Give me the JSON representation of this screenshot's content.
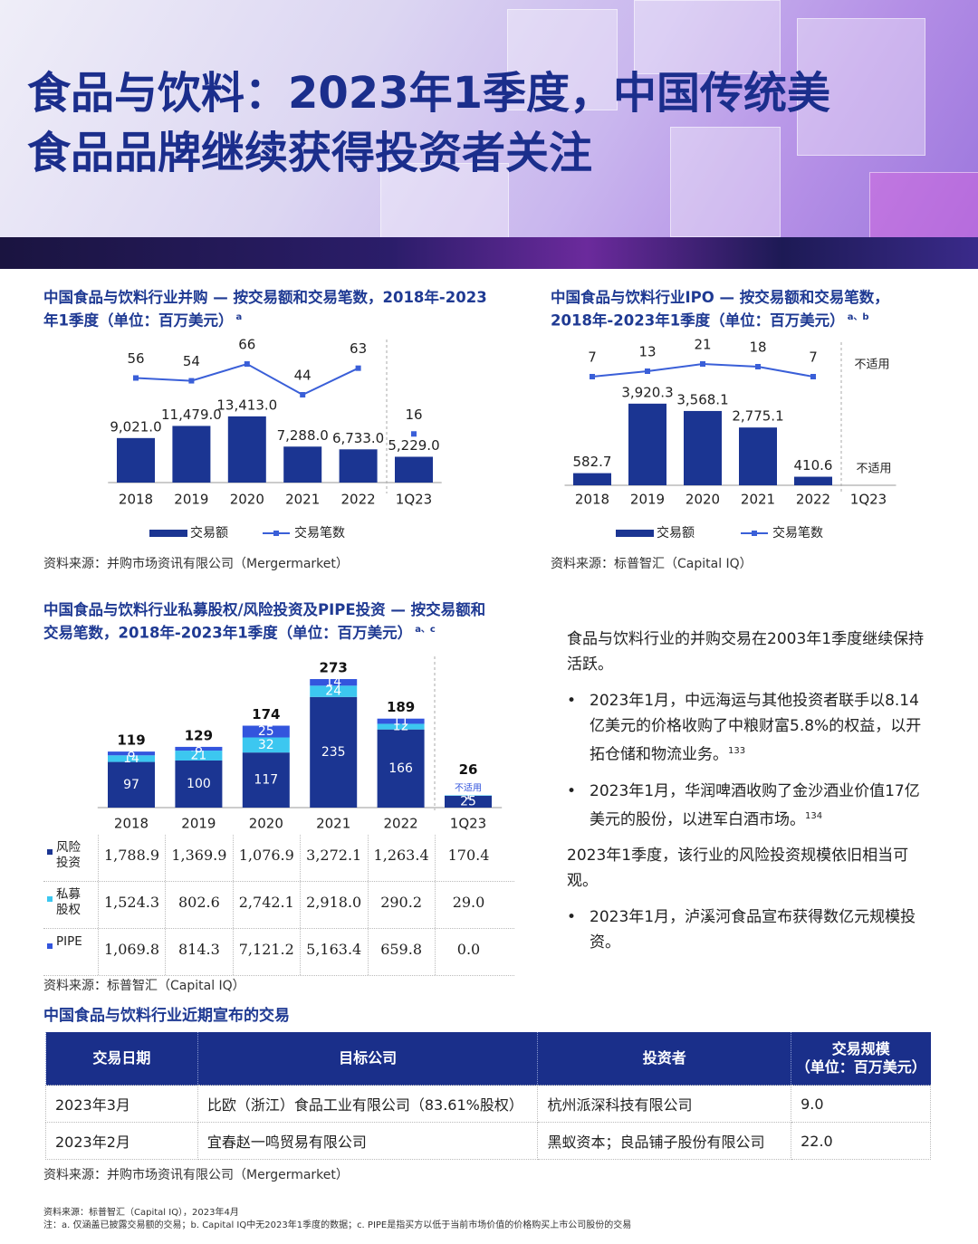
{
  "header": {
    "title_lines": [
      "食品与饮料：2023年1季度，中国传统美",
      "食品品牌继续获得投资者关注"
    ]
  },
  "chart_data": [
    {
      "type": "bar_line",
      "title": "中国食品与饮料行业并购 — 按交易额和交易笔数，2018年-2023年1季度（单位：百万美元）",
      "title_note": "a",
      "categories": [
        "2018",
        "2019",
        "2020",
        "2021",
        "2022",
        "1Q23"
      ],
      "series": [
        {
          "name": "交易额",
          "color": "#1b3592",
          "values": [
            9021.0,
            11479.0,
            13413.0,
            7288.0,
            6733.0,
            5229.0
          ],
          "value_labels": [
            "9,021.0",
            "11,479.0",
            "13,413.0",
            "7,288.0",
            "6,733.0",
            "5,229.0"
          ]
        },
        {
          "name": "交易笔数",
          "color": "#3a5fd8",
          "values": [
            56,
            54,
            66,
            44,
            63,
            16
          ]
        }
      ],
      "source": "资料来源：并购市场资讯有限公司（Mergermarket）"
    },
    {
      "type": "bar_line",
      "title": "中国食品与饮料行业IPO — 按交易额和交易笔数，2018年-2023年1季度（单位：百万美元）",
      "title_note": "a、b",
      "categories": [
        "2018",
        "2019",
        "2020",
        "2021",
        "2022",
        "1Q23"
      ],
      "series": [
        {
          "name": "交易额",
          "color": "#1b3592",
          "values": [
            582.7,
            3920.3,
            3568.1,
            2775.1,
            410.6,
            null
          ],
          "value_labels": [
            "582.7",
            "3,920.3",
            "3,568.1",
            "2,775.1",
            "410.6",
            "不适用"
          ]
        },
        {
          "name": "交易笔数",
          "color": "#3a5fd8",
          "values": [
            7,
            13,
            21,
            18,
            7,
            null
          ],
          "value_labels": [
            "7",
            "13",
            "21",
            "18",
            "7",
            "不适用"
          ]
        }
      ],
      "source": "资料来源：标普智汇（Capital IQ）"
    },
    {
      "type": "stacked_bar",
      "title": "中国食品与饮料行业私募股权/风险投资及PIPE投资 — 按交易额和交易笔数，2018年-2023年1季度（单位：百万美元）",
      "title_note": "a、c",
      "categories": [
        "2018",
        "2019",
        "2020",
        "2021",
        "2022",
        "1Q23"
      ],
      "series": [
        {
          "name": "风险投资",
          "color": "#1b3592",
          "values": [
            97,
            100,
            117,
            235,
            166,
            25
          ]
        },
        {
          "name": "私募股权",
          "color": "#3cc7f0",
          "values": [
            14,
            21,
            32,
            24,
            12,
            1
          ]
        },
        {
          "name": "PIPE",
          "color": "#3355dd",
          "values": [
            8,
            8,
            25,
            14,
            11,
            null
          ],
          "value_labels": [
            "8",
            "8",
            "25",
            "14",
            "11",
            "不适用"
          ]
        }
      ],
      "totals": [
        119,
        129,
        174,
        273,
        189,
        26
      ],
      "table": {
        "rows": [
          [
            "1,788.9",
            "1,369.9",
            "1,076.9",
            "3,272.1",
            "1,263.4",
            "170.4"
          ],
          [
            "1,524.3",
            "802.6",
            "2,742.1",
            "2,918.0",
            "290.2",
            "29.0"
          ],
          [
            "1,069.8",
            "814.3",
            "7,121.2",
            "5,163.4",
            "659.8",
            "0.0"
          ]
        ]
      },
      "source": "资料来源：标普智汇（Capital IQ）"
    }
  ],
  "text": {
    "paragraphs": [
      {
        "text": "食品与饮料行业的并购交易在2003年1季度继续保持活跃。",
        "bullets": [
          {
            "text": "2023年1月，中远海运与其他投资者联手以8.14亿美元的价格收购了中粮财富5.8%的权益，以开拓仓储和物流业务。",
            "ref": "133"
          },
          {
            "text": "2023年1月，华润啤酒收购了金沙酒业价值17亿美元的股份，以进军白酒市场。",
            "ref": "134"
          }
        ]
      },
      {
        "text": "2023年1季度，该行业的风险投资规模依旧相当可观。",
        "bullets": [
          {
            "text": "2023年1月，泸溪河食品宣布获得数亿元规模投资。"
          }
        ]
      }
    ]
  },
  "deals_table": {
    "title": "中国食品与饮料行业近期宣布的交易",
    "header": [
      "交易日期",
      "目标公司",
      "投资者",
      [
        "交易规模",
        "（单位：百万美元）"
      ]
    ],
    "rows": [
      [
        "2023年3月",
        "比欧（浙江）食品工业有限公司（83.61%股权）",
        "杭州派深科技有限公司",
        "9.0"
      ],
      [
        "2023年2月",
        "宜春赵一鸣贸易有限公司",
        "黑蚁资本；良品铺子股份有限公司",
        "22.0"
      ]
    ],
    "source": "资料来源：并购市场资讯有限公司（Mergermarket）"
  },
  "footer": {
    "notes": [
      "资料来源：标普智汇（Capital IQ），2023年4月",
      "注：a. 仅涵盖已披露交易额的交易；b. Capital IQ中无2023年1季度的数据；c. PIPE是指买方以低于当前市场价值的价格购买上市公司股份的交易"
    ]
  }
}
